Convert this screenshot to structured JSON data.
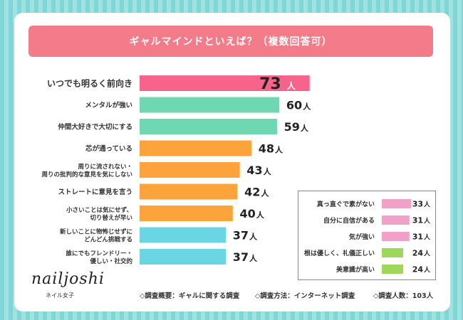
{
  "title": "ギャルマインドといえば？（複数回答可）",
  "chart_data": {
    "type": "bar",
    "orientation": "horizontal",
    "title": "ギャルマインドといえば？（複数回答可）",
    "unit": "人",
    "xlim": [
      0,
      80
    ],
    "categories": [
      [
        "いつでも明るく前向き"
      ],
      [
        "メンタルが強い"
      ],
      [
        "仲間大好きで大切にする"
      ],
      [
        "芯が通っている"
      ],
      [
        "周りに流されない・",
        "周りの批判的な意見を気にしない"
      ],
      [
        "ストレートに意見を言う"
      ],
      [
        "小さいことは気にせず、",
        "切り替えが早い"
      ],
      [
        "新しいことに物怖じせずに",
        "どんどん挑戦する"
      ],
      [
        "誰にでもフレンドリー・",
        "優しい・社交的"
      ]
    ],
    "values": [
      73,
      60,
      59,
      48,
      43,
      42,
      40,
      37,
      37
    ],
    "colors": [
      "#f7638a",
      "#6fd8b3",
      "#6fd8b3",
      "#fca33b",
      "#fca33b",
      "#fca33b",
      "#fca33b",
      "#6ad6e4",
      "#6ad6e4"
    ],
    "highlight_label_color": "#f2557c",
    "legend_items": [
      {
        "label": "真っ直ぐで素がない",
        "value": 33,
        "color": "#efa1c8"
      },
      {
        "label": "自分に自信がある",
        "value": 31,
        "color": "#efa1c8"
      },
      {
        "label": "気が強い",
        "value": 31,
        "color": "#efa1c8"
      },
      {
        "label": "根は優しく、礼儀正しい",
        "value": 24,
        "color": "#9ed85a"
      },
      {
        "label": "美意識が高い",
        "value": 24,
        "color": "#9ed85a"
      }
    ]
  },
  "brand": {
    "logo": "nailjoshi",
    "sub": "ネイル女子"
  },
  "footer": {
    "summary": "◇調査概要：ギャルに関する調査",
    "method": "◇調査方法：インターネット調査",
    "count": "◇調査人数：103人"
  }
}
